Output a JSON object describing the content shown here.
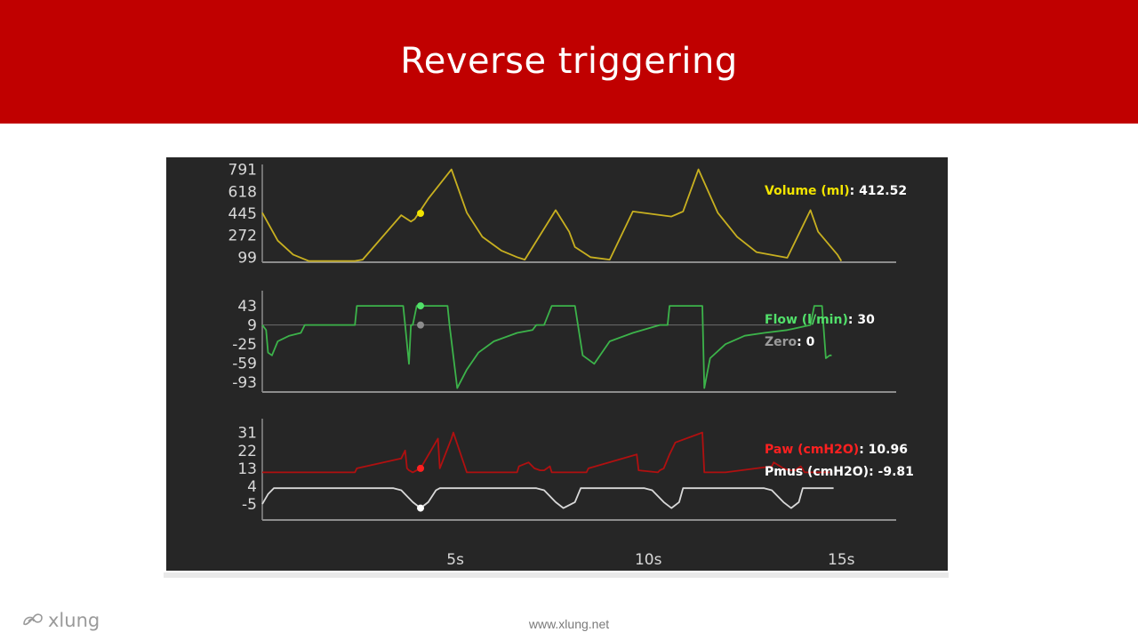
{
  "slide": {
    "title": "Reverse triggering",
    "footer_url": "www.xlung.net",
    "logo_text": "xlung",
    "logo_icon": "xlung-swirl-icon"
  },
  "colors": {
    "banner": "#c00000",
    "panel_bg": "#262626",
    "volume": "#c8b020",
    "flow": "#3cb34a",
    "paw": "#b01010",
    "pmus": "#d8d8d8",
    "zero": "#8a8a8a",
    "axis": "#8c8c8c",
    "label": "#ffffff"
  },
  "chart_data": [
    {
      "type": "line",
      "name": "volume",
      "ylabel_ticks": [
        "791",
        "618",
        "445",
        "272",
        "99"
      ],
      "yticks": [
        791,
        618,
        445,
        272,
        99
      ],
      "ylim": [
        60,
        830
      ],
      "xlim": [
        0,
        15.5
      ],
      "readout_label": "Volume (ml)",
      "readout_value": "412.52",
      "cursor": {
        "x": 4.1,
        "y": 445
      },
      "series": [
        {
          "x": [
            0,
            0.4,
            0.8,
            1.2,
            2.4,
            2.6,
            3.6,
            3.85,
            3.95,
            4.3,
            4.9,
            5.3,
            5.7,
            6.2,
            6.6,
            6.8,
            7.6,
            7.95,
            8.1,
            8.5,
            9.0,
            9.6,
            10.6,
            10.9,
            11.3,
            11.8,
            12.3,
            12.8,
            13.6,
            14.2,
            14.4,
            14.9,
            15.0
          ],
          "y": [
            450,
            230,
            120,
            70,
            70,
            80,
            430,
            380,
            400,
            560,
            791,
            450,
            260,
            150,
            100,
            80,
            470,
            300,
            180,
            100,
            80,
            460,
            420,
            460,
            791,
            450,
            260,
            140,
            95,
            470,
            300,
            120,
            70
          ]
        }
      ]
    },
    {
      "type": "line",
      "name": "flow",
      "ylabel_ticks": [
        "43",
        "9",
        "-25",
        "-59",
        "-93"
      ],
      "yticks": [
        43,
        9,
        -25,
        -59,
        -93
      ],
      "ylim": [
        -110,
        70
      ],
      "xlim": [
        0,
        15.5
      ],
      "readout_label": "Flow (l/min)",
      "readout_value": "30",
      "zero_label": "Zero",
      "zero_value": "0",
      "cursor": {
        "x": 4.1,
        "y": 43
      },
      "zero_cursor": {
        "x": 4.1,
        "y": 9
      },
      "series": [
        {
          "x": [
            0,
            0.1,
            0.15,
            0.25,
            0.4,
            0.7,
            1.0,
            1.1,
            1.15,
            1.2,
            2.4,
            2.45,
            3.65,
            3.7,
            3.8,
            3.85,
            3.9,
            4.0,
            4.05,
            4.1,
            4.15,
            4.8,
            4.85,
            5.05,
            5.3,
            5.6,
            6.0,
            6.6,
            7.0,
            7.1,
            7.15,
            7.3,
            7.5,
            7.6,
            8.1,
            8.3,
            8.6,
            9.0,
            9.6,
            10.3,
            10.35,
            10.5,
            10.55,
            10.6,
            11.4,
            11.45,
            11.6,
            12.0,
            12.5,
            13.0,
            13.6,
            14.2,
            14.3,
            14.4,
            14.5,
            14.6,
            14.7,
            14.75
          ],
          "y": [
            9,
            0,
            -40,
            -45,
            -20,
            -10,
            -5,
            9,
            9,
            9,
            9,
            43,
            43,
            9,
            -60,
            9,
            9,
            43,
            43,
            43,
            43,
            43,
            9,
            -103,
            -70,
            -40,
            -20,
            -5,
            0,
            9,
            9,
            9,
            43,
            43,
            43,
            -45,
            -60,
            -20,
            -5,
            9,
            9,
            9,
            43,
            43,
            43,
            -103,
            -50,
            -25,
            -10,
            -5,
            0,
            9,
            43,
            43,
            43,
            -50,
            -45,
            -45
          ]
        }
      ]
    },
    {
      "type": "line",
      "name": "pressure",
      "ylabel_ticks": [
        "31",
        "22",
        "13",
        "4",
        "-5"
      ],
      "yticks": [
        31,
        22,
        13,
        4,
        -5
      ],
      "ylim": [
        -13,
        38
      ],
      "xlim": [
        0,
        15.5
      ],
      "readout_label": "Paw (cmH2O)",
      "readout_value": "10.96",
      "readout2_label": "Pmus (cmH2O)",
      "readout2_value": "-9.81",
      "paw_cursor": {
        "x": 4.1,
        "y": 13
      },
      "pmus_cursor": {
        "x": 4.1,
        "y": -7
      },
      "series": [
        {
          "name": "Paw",
          "x": [
            0,
            2.4,
            2.45,
            3.6,
            3.7,
            3.75,
            3.8,
            3.9,
            4.0,
            4.1,
            4.55,
            4.6,
            4.9,
            4.95,
            5.3,
            6.6,
            6.65,
            6.9,
            7.05,
            7.2,
            7.3,
            7.45,
            7.5,
            8.1,
            8.4,
            8.45,
            9.7,
            9.75,
            10.25,
            10.3,
            10.4,
            10.55,
            10.7,
            11.4,
            11.45,
            12.0,
            13.2,
            13.25,
            13.5,
            13.65,
            13.8,
            13.95,
            14.05,
            14.7
          ],
          "y": [
            11,
            11,
            13,
            18,
            22,
            13,
            12,
            11,
            12,
            13,
            28,
            13,
            28,
            31,
            11,
            11,
            14,
            16,
            13,
            12,
            12,
            14,
            11,
            11,
            11,
            13,
            20,
            12,
            11,
            12,
            13,
            20,
            26,
            31,
            11,
            11,
            14,
            16,
            13,
            12,
            12,
            14,
            11,
            11
          ]
        },
        {
          "name": "Pmus",
          "x": [
            0,
            0.15,
            0.3,
            3.4,
            3.6,
            3.9,
            4.1,
            4.3,
            4.5,
            4.6,
            7.1,
            7.3,
            7.6,
            7.8,
            8.1,
            8.25,
            9.9,
            10.1,
            10.4,
            10.6,
            10.8,
            10.9,
            13.0,
            13.2,
            13.5,
            13.7,
            13.9,
            14.0,
            14.8
          ],
          "y": [
            -5,
            0,
            3,
            3,
            2,
            -4,
            -7,
            -4,
            2,
            3,
            3,
            2,
            -4,
            -7,
            -4,
            3,
            3,
            2,
            -4,
            -7,
            -4,
            3,
            3,
            2,
            -4,
            -7,
            -4,
            3,
            3
          ]
        }
      ]
    }
  ],
  "x_axis": {
    "ticks": [
      5,
      10,
      15
    ],
    "tick_labels": [
      "5s",
      "10s",
      "15s"
    ]
  }
}
